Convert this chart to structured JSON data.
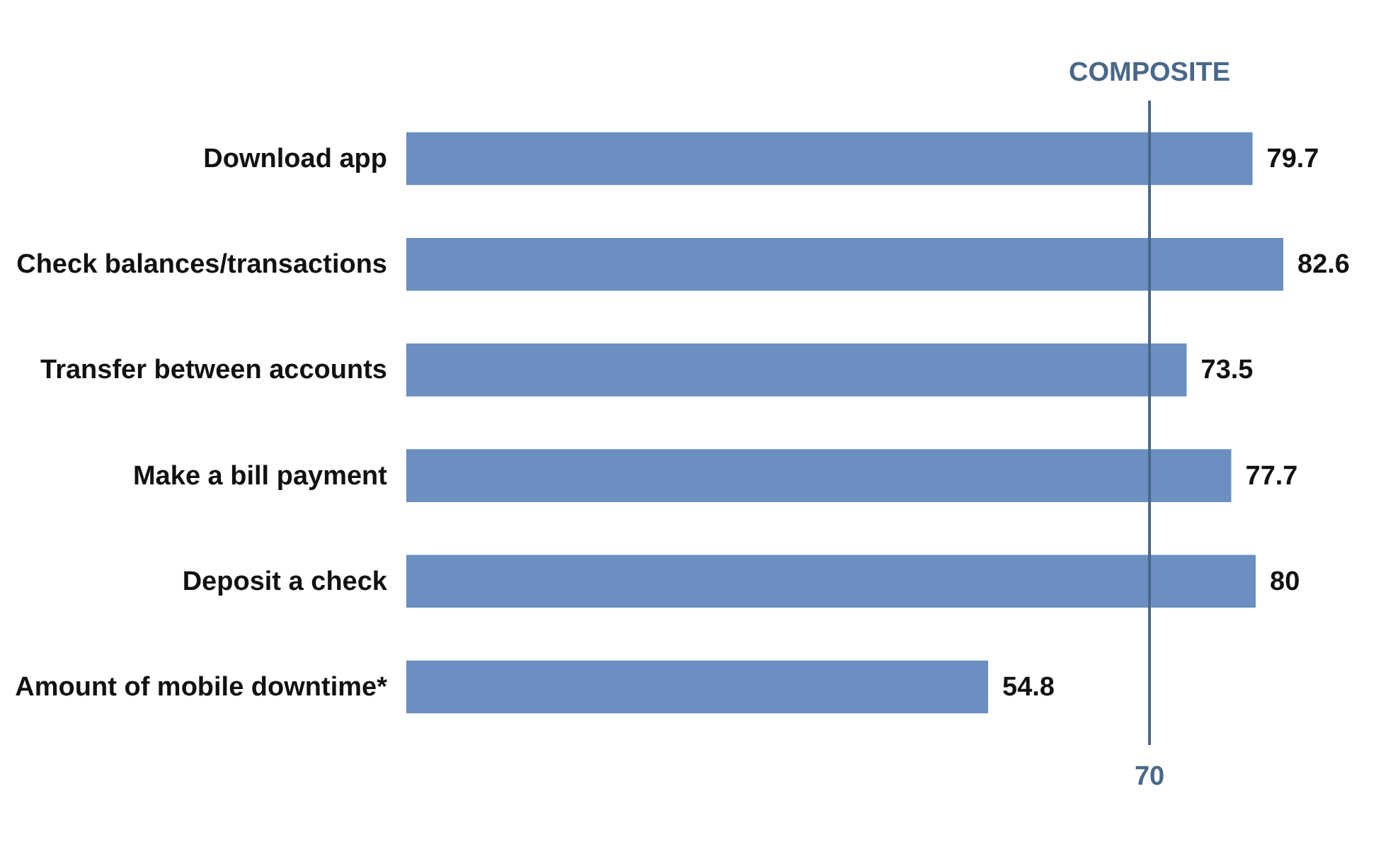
{
  "chart_data": {
    "type": "bar",
    "orientation": "horizontal",
    "categories": [
      "Download app",
      "Check balances/transactions",
      "Transfer between accounts",
      "Make a bill payment",
      "Deposit a check",
      "Amount of mobile downtime*"
    ],
    "values": [
      79.7,
      82.6,
      73.5,
      77.7,
      80,
      54.8
    ],
    "color": "#6a8fc0",
    "annotations": [
      "70"
    ],
    "tick_labels": "y",
    "data_labels": true,
    "ref_lines": [
      {
        "axis": "x",
        "value": 70,
        "label": "COMPOSITE",
        "color": "#4a6888"
      }
    ]
  }
}
